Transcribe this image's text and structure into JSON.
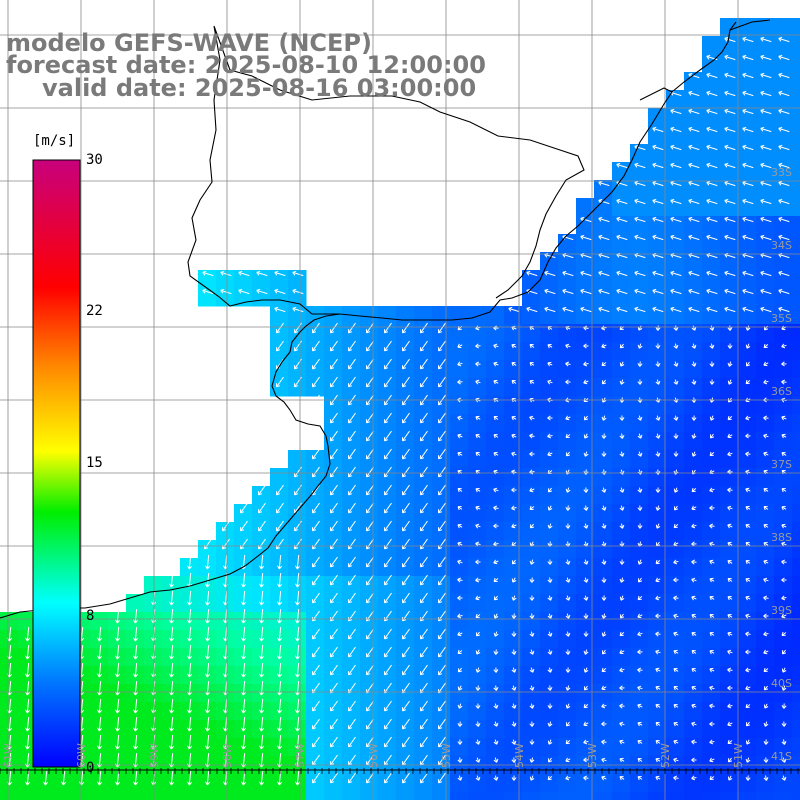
{
  "title": {
    "line1": "modelo GEFS-WAVE (NCEP)",
    "line2": "forecast date: 2025-08-10 12:00:00",
    "line3": "valid date: 2025-08-16 03:00:00"
  },
  "colorbar": {
    "unit": "[m/s]",
    "min": 0,
    "max": 30,
    "ticks": [
      "30",
      "22",
      "15",
      "8",
      "0"
    ],
    "colors": [
      "#0000ff",
      "#0077ff",
      "#00ffff",
      "#00ee00",
      "#ffff00",
      "#ff8800",
      "#ff0000",
      "#c8007d"
    ]
  },
  "map": {
    "lat_labels": [
      "33S",
      "34S",
      "35S",
      "36S",
      "37S",
      "38S",
      "39S",
      "40S",
      "41S"
    ],
    "lon_labels": [
      "61W",
      "60W",
      "59W",
      "58W",
      "57W",
      "56W",
      "55W",
      "54W",
      "53W",
      "52W",
      "51W"
    ],
    "land_color": "#ffffff",
    "arrow_color": "#ffffff"
  }
}
